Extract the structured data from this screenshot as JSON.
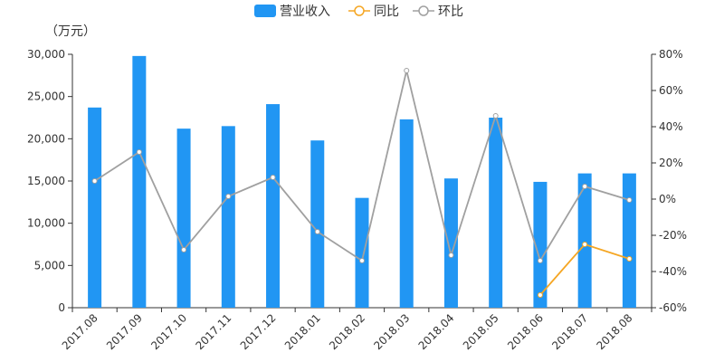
{
  "chart_data": {
    "type": "bar",
    "unit_label": "（万元）",
    "categories": [
      "2017.08",
      "2017.09",
      "2017.10",
      "2017.11",
      "2017.12",
      "2018.01",
      "2018.02",
      "2018.03",
      "2018.04",
      "2018.05",
      "2018.06",
      "2018.07",
      "2018.08"
    ],
    "series": [
      {
        "name": "营业收入",
        "type": "bar",
        "axis": "left",
        "color": "#2196f3",
        "values": [
          23700,
          29800,
          21200,
          21500,
          24100,
          19800,
          13000,
          22300,
          15300,
          22500,
          14900,
          15900,
          15900
        ]
      },
      {
        "name": "同比",
        "type": "line",
        "axis": "right",
        "color": "#f5a623",
        "values": [
          null,
          null,
          null,
          null,
          null,
          null,
          null,
          null,
          null,
          null,
          -53,
          -25,
          -33
        ]
      },
      {
        "name": "环比",
        "type": "line",
        "axis": "right",
        "color": "#a0a0a0",
        "values": [
          10,
          26,
          -28,
          1.5,
          12,
          -18,
          -34,
          71,
          -31,
          46,
          -34,
          7,
          -0.5
        ]
      }
    ],
    "left_axis": {
      "ylim": [
        0,
        30000
      ],
      "ticks": [
        0,
        5000,
        10000,
        15000,
        20000,
        25000,
        30000
      ],
      "tick_labels": [
        "0",
        "5,000",
        "10,000",
        "15,000",
        "20,000",
        "25,000",
        "30,000"
      ]
    },
    "right_axis": {
      "ylim": [
        -60,
        80
      ],
      "ticks": [
        -60,
        -40,
        -20,
        0,
        20,
        40,
        60,
        80
      ],
      "tick_labels": [
        "-60%",
        "-40%",
        "-20%",
        "0%",
        "20%",
        "40%",
        "60%",
        "80%"
      ]
    },
    "grid": false,
    "legend_position": "top-center"
  }
}
